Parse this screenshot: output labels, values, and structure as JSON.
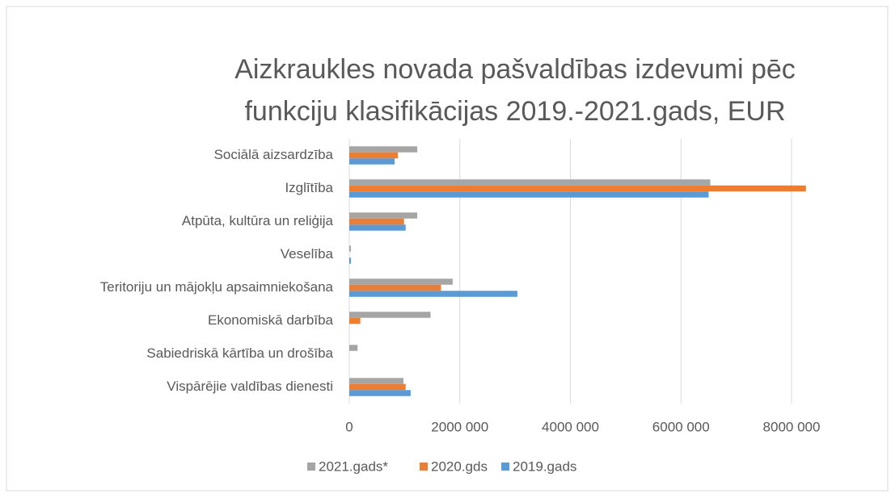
{
  "chart_data": {
    "type": "hbar",
    "title": [
      "Aizkraukles novada pašvaldības izdevumi pēc",
      "funkciju klasifikācijas 2019.-2021.gads, EUR"
    ],
    "categories": [
      "Sociālā aizsardzība",
      "Izglītība",
      "Atpūta, kultūra un reliģija",
      "Veselība",
      "Teritoriju un mājokļu apsaimniekošana",
      "Ekonomiskā darbība",
      "Sabiedriskā kārtība un drošība",
      "Vispārējie valdības dienesti"
    ],
    "series": [
      {
        "name": "2021.gads*",
        "color": "#a5a5a5",
        "values": [
          1230000,
          6530000,
          1230000,
          30000,
          1870000,
          1470000,
          150000,
          980000
        ]
      },
      {
        "name": "2020.gds",
        "color": "#ed7d31",
        "values": [
          880000,
          8260000,
          990000,
          0,
          1660000,
          200000,
          0,
          1020000
        ]
      },
      {
        "name": "2019.gads",
        "color": "#5b9bd5",
        "values": [
          820000,
          6500000,
          1020000,
          30000,
          3040000,
          0,
          0,
          1110000
        ]
      }
    ],
    "xlim": [
      0,
      9000000
    ],
    "xticks": [
      0,
      {
        "value": 2000000,
        "label": "2000 000"
      },
      {
        "value": 4000000,
        "label": "4000 000"
      },
      {
        "value": 6000000,
        "label": "6000 000"
      },
      {
        "value": 8000000,
        "label": "8000 000"
      }
    ],
    "grid": true,
    "legend": "bottom"
  }
}
